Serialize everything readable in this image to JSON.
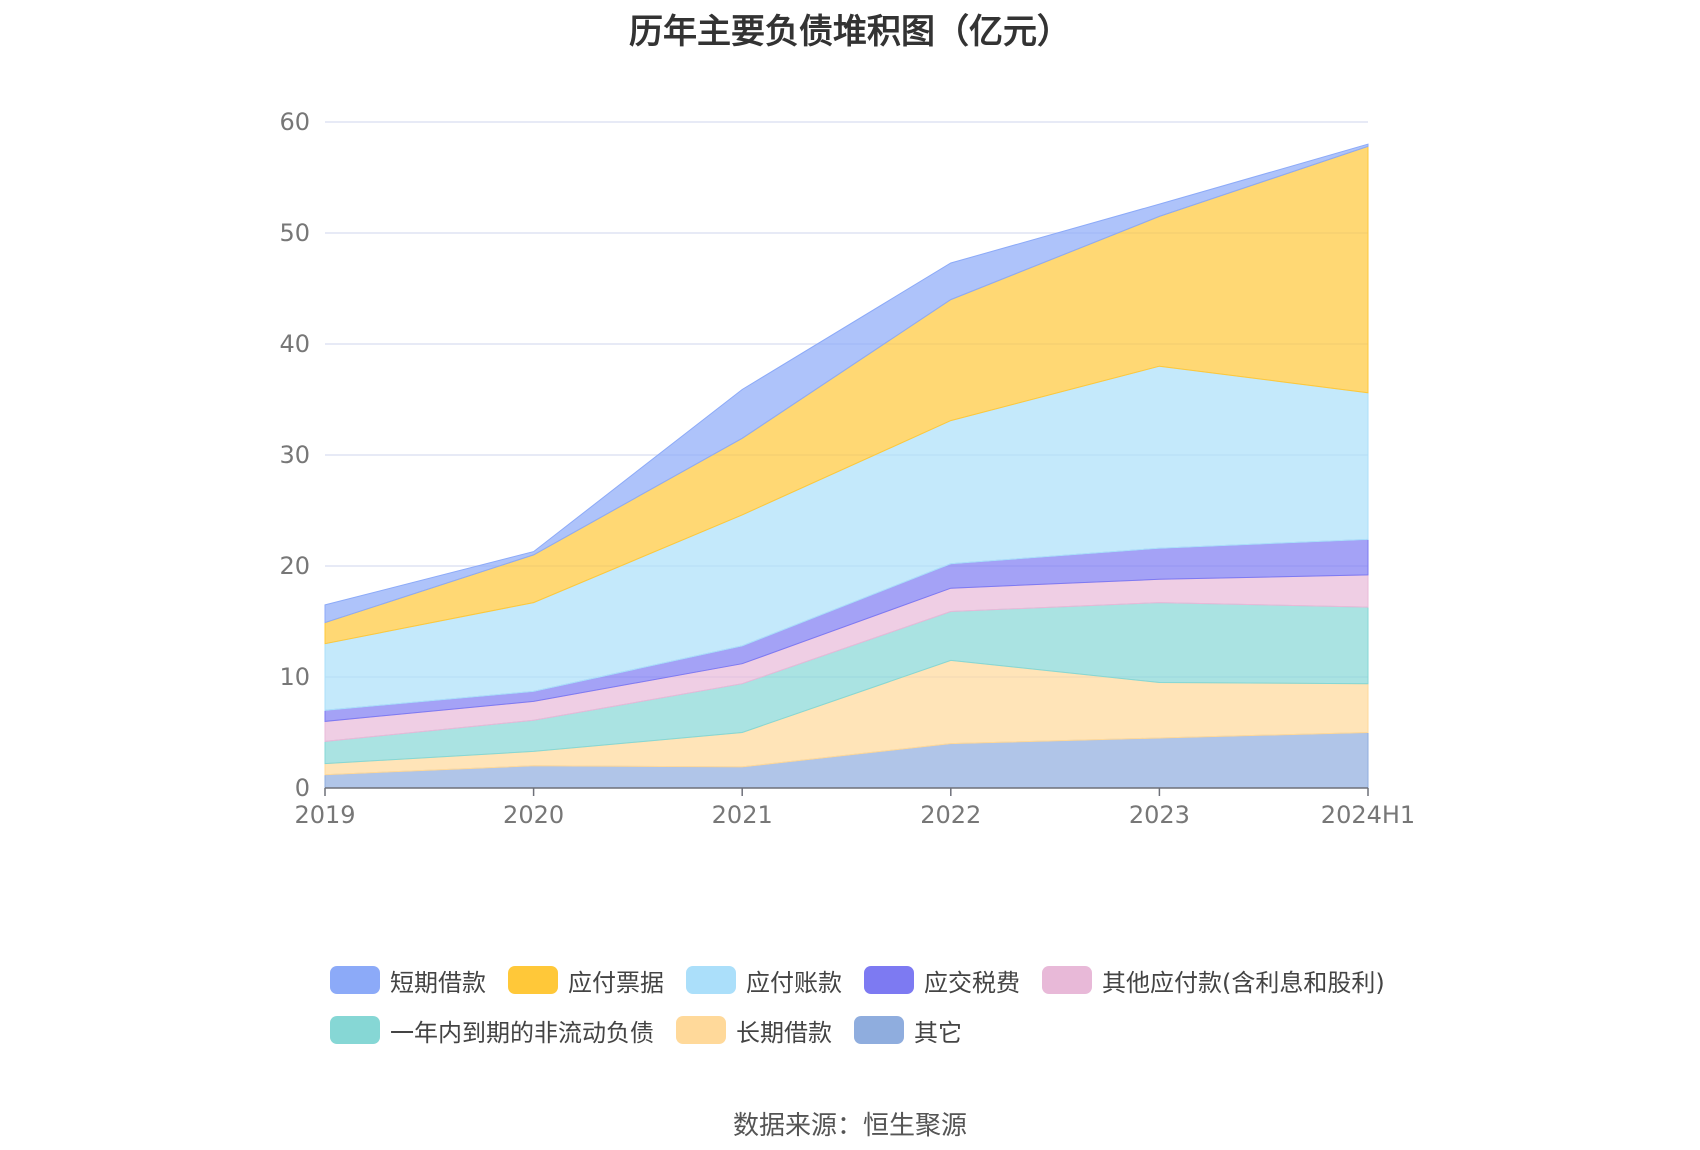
{
  "chart_data": {
    "type": "area",
    "stacked": true,
    "title": "历年主要负债堆积图（亿元）",
    "categories": [
      "2019",
      "2020",
      "2021",
      "2022",
      "2023",
      "2024H1"
    ],
    "ylim": [
      0,
      60
    ],
    "yticks": [
      0,
      10,
      20,
      30,
      40,
      50,
      60
    ],
    "grid": true,
    "legend_position": "bottom",
    "series": [
      {
        "name": "其它",
        "color": "#8fadde",
        "values": [
          1.2,
          2.0,
          1.9,
          4.0,
          4.5,
          5.0
        ]
      },
      {
        "name": "长期借款",
        "color": "#ffd99a",
        "values": [
          1.0,
          1.3,
          3.1,
          7.5,
          5.0,
          4.4
        ]
      },
      {
        "name": "一年内到期的非流动负债",
        "color": "#86d7d5",
        "values": [
          2.0,
          2.8,
          4.4,
          4.4,
          7.2,
          6.9
        ]
      },
      {
        "name": "其他应付款(含利息和股利)",
        "color": "#e8b9d8",
        "values": [
          1.8,
          1.7,
          1.8,
          2.1,
          2.1,
          2.9
        ]
      },
      {
        "name": "应交税费",
        "color": "#7d7af2",
        "values": [
          1.0,
          0.9,
          1.6,
          2.2,
          2.8,
          3.2
        ]
      },
      {
        "name": "应付账款",
        "color": "#abdffa",
        "values": [
          6.0,
          8.0,
          11.8,
          12.9,
          16.4,
          13.2
        ]
      },
      {
        "name": "应付票据",
        "color": "#ffc839",
        "values": [
          1.9,
          4.3,
          6.9,
          10.9,
          13.5,
          22.2
        ]
      },
      {
        "name": "短期借款",
        "color": "#8caaf8",
        "values": [
          1.6,
          0.3,
          4.4,
          3.3,
          1.1,
          0.2
        ]
      }
    ]
  },
  "legend_rows": [
    [
      {
        "label": "短期借款",
        "color": "#8caaf8"
      },
      {
        "label": "应付票据",
        "color": "#ffc839"
      },
      {
        "label": "应付账款",
        "color": "#abdffa"
      },
      {
        "label": "应交税费",
        "color": "#7d7af2"
      },
      {
        "label": "其他应付款(含利息和股利)",
        "color": "#e8b9d8"
      }
    ],
    [
      {
        "label": "一年内到期的非流动负债",
        "color": "#86d7d5"
      },
      {
        "label": "长期借款",
        "color": "#ffd99a"
      },
      {
        "label": "其它",
        "color": "#8fadde"
      }
    ]
  ],
  "source": "数据来源：恒生聚源"
}
